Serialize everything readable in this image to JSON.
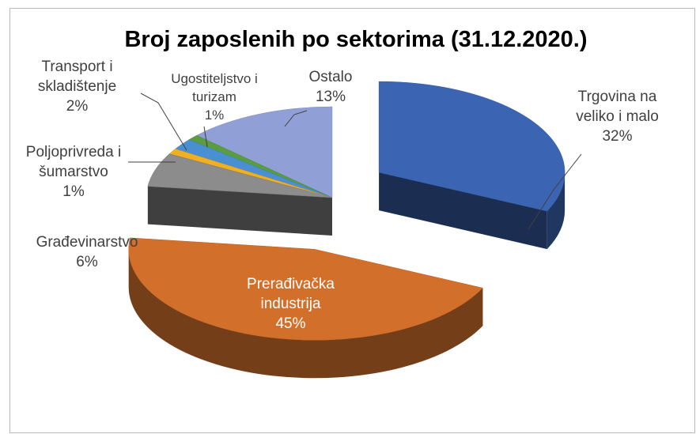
{
  "chart_data": {
    "type": "pie3d",
    "title": "Broj zaposlenih po sektorima (31.12.2020.)",
    "categories": [
      "Trgovina na veliko i malo",
      "Prerađivačka industrija",
      "Građevinarstvo",
      "Poljoprivreda i šumarstvo",
      "Transport i skladištenje",
      "Ugostiteljstvo i turizam",
      "Ostalo"
    ],
    "values": [
      32,
      45,
      6,
      1,
      2,
      1,
      13
    ],
    "value_labels": [
      "32%",
      "45%",
      "6%",
      "1%",
      "2%",
      "1%",
      "13%"
    ],
    "colors": [
      "#3b64b3",
      "#d2702b",
      "#8c8c8c",
      "#f0b020",
      "#4a8fd2",
      "#5a9c40",
      "#909fd6"
    ]
  }
}
